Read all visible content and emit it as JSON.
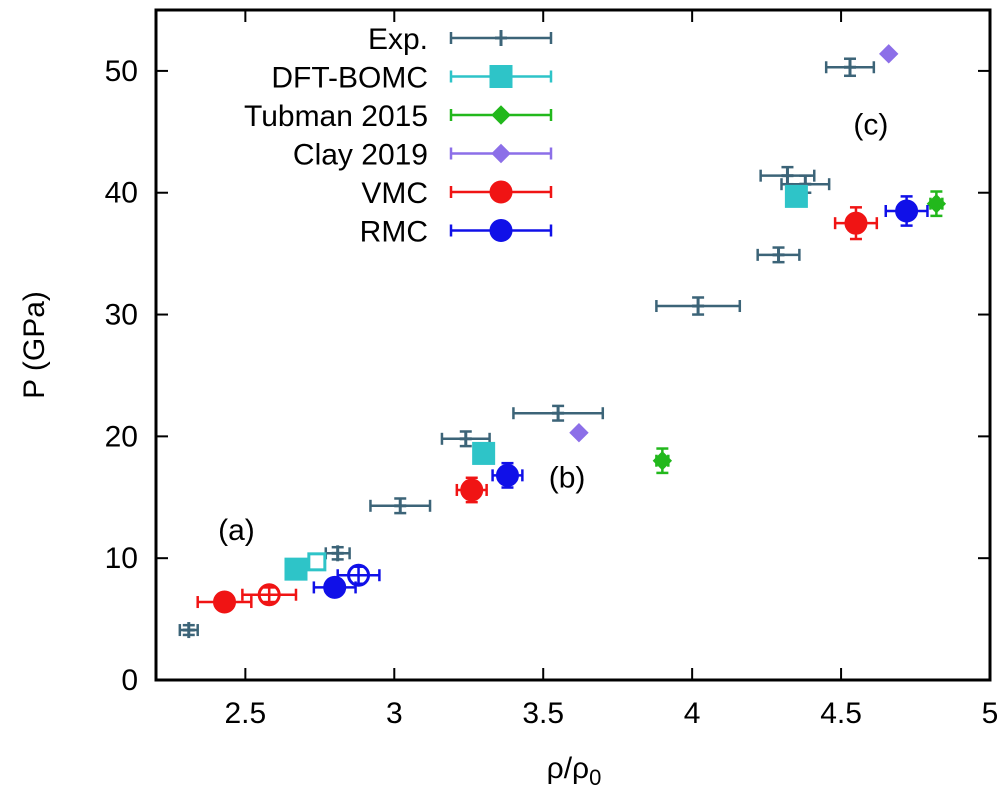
{
  "chart_data": {
    "type": "scatter",
    "xlabel": "ρ/ρ",
    "xlabel_sub": "0",
    "ylabel": "P (GPa)",
    "xlim": [
      2.2,
      5.0
    ],
    "ylim": [
      0,
      55
    ],
    "xticks": [
      "2.5",
      "3",
      "3.5",
      "4",
      "4.5",
      "5"
    ],
    "xtick_values": [
      2.5,
      3.0,
      3.5,
      4.0,
      4.5,
      5.0
    ],
    "yticks": [
      "0",
      "10",
      "20",
      "30",
      "40",
      "50"
    ],
    "ytick_values": [
      0,
      10,
      20,
      30,
      40,
      50
    ],
    "grid": false,
    "legend_position": "top-left",
    "annotations": [
      {
        "text": "(a)",
        "x": 2.47,
        "y": 11.5
      },
      {
        "text": "(b)",
        "x": 3.58,
        "y": 15.8
      },
      {
        "text": "(c)",
        "x": 4.6,
        "y": 44.8
      }
    ],
    "series": [
      {
        "name": "Exp.",
        "color": "#3c6478",
        "marker": "plus",
        "points": [
          {
            "x": 2.31,
            "y": 4.1,
            "xerr": 0.03,
            "yerr": 0.4
          },
          {
            "x": 2.81,
            "y": 10.4,
            "xerr": 0.04,
            "yerr": 0.5
          },
          {
            "x": 3.02,
            "y": 14.3,
            "xerr": 0.1,
            "yerr": 0.6
          },
          {
            "x": 3.24,
            "y": 19.8,
            "xerr": 0.08,
            "yerr": 0.6
          },
          {
            "x": 3.55,
            "y": 21.9,
            "xerr": 0.15,
            "yerr": 0.6
          },
          {
            "x": 4.02,
            "y": 30.7,
            "xerr": 0.14,
            "yerr": 0.7
          },
          {
            "x": 4.29,
            "y": 34.9,
            "xerr": 0.07,
            "yerr": 0.6
          },
          {
            "x": 4.32,
            "y": 41.4,
            "xerr": 0.09,
            "yerr": 0.7
          },
          {
            "x": 4.38,
            "y": 40.7,
            "xerr": 0.08,
            "yerr": 0.7
          },
          {
            "x": 4.53,
            "y": 50.3,
            "xerr": 0.08,
            "yerr": 0.7
          }
        ]
      },
      {
        "name": "DFT-BOMC",
        "color": "#2ec4c8",
        "marker": "square",
        "points": [
          {
            "x": 2.67,
            "y": 9.1
          },
          {
            "x": 2.74,
            "y": 9.7,
            "open": true
          },
          {
            "x": 3.3,
            "y": 18.6
          },
          {
            "x": 4.35,
            "y": 39.7
          }
        ]
      },
      {
        "name": "Tubman 2015",
        "color": "#22b81c",
        "marker": "diamond",
        "points": [
          {
            "x": 3.9,
            "y": 18.0,
            "xerr": 0.02,
            "yerr": 1.0
          },
          {
            "x": 4.82,
            "y": 39.1,
            "xerr": 0.02,
            "yerr": 1.0
          }
        ]
      },
      {
        "name": "Clay 2019",
        "color": "#8c6fe8",
        "marker": "diamond",
        "points": [
          {
            "x": 3.62,
            "y": 20.3
          },
          {
            "x": 4.66,
            "y": 51.4
          }
        ]
      },
      {
        "name": "VMC",
        "color": "#f01414",
        "marker": "circle",
        "points": [
          {
            "x": 2.43,
            "y": 6.4,
            "xerr": 0.09,
            "yerr": 0.5
          },
          {
            "x": 2.58,
            "y": 7.0,
            "xerr": 0.09,
            "yerr": 0.6,
            "open": true
          },
          {
            "x": 3.26,
            "y": 15.6,
            "xerr": 0.05,
            "yerr": 1.0
          },
          {
            "x": 4.55,
            "y": 37.5,
            "xerr": 0.07,
            "yerr": 1.3
          }
        ]
      },
      {
        "name": "RMC",
        "color": "#1010e8",
        "marker": "circle",
        "points": [
          {
            "x": 2.8,
            "y": 7.6,
            "xerr": 0.07,
            "yerr": 0.6
          },
          {
            "x": 2.88,
            "y": 8.6,
            "xerr": 0.07,
            "yerr": 0.7,
            "open": true
          },
          {
            "x": 3.38,
            "y": 16.8,
            "xerr": 0.05,
            "yerr": 1.0
          },
          {
            "x": 4.72,
            "y": 38.5,
            "xerr": 0.07,
            "yerr": 1.2
          }
        ]
      }
    ]
  }
}
